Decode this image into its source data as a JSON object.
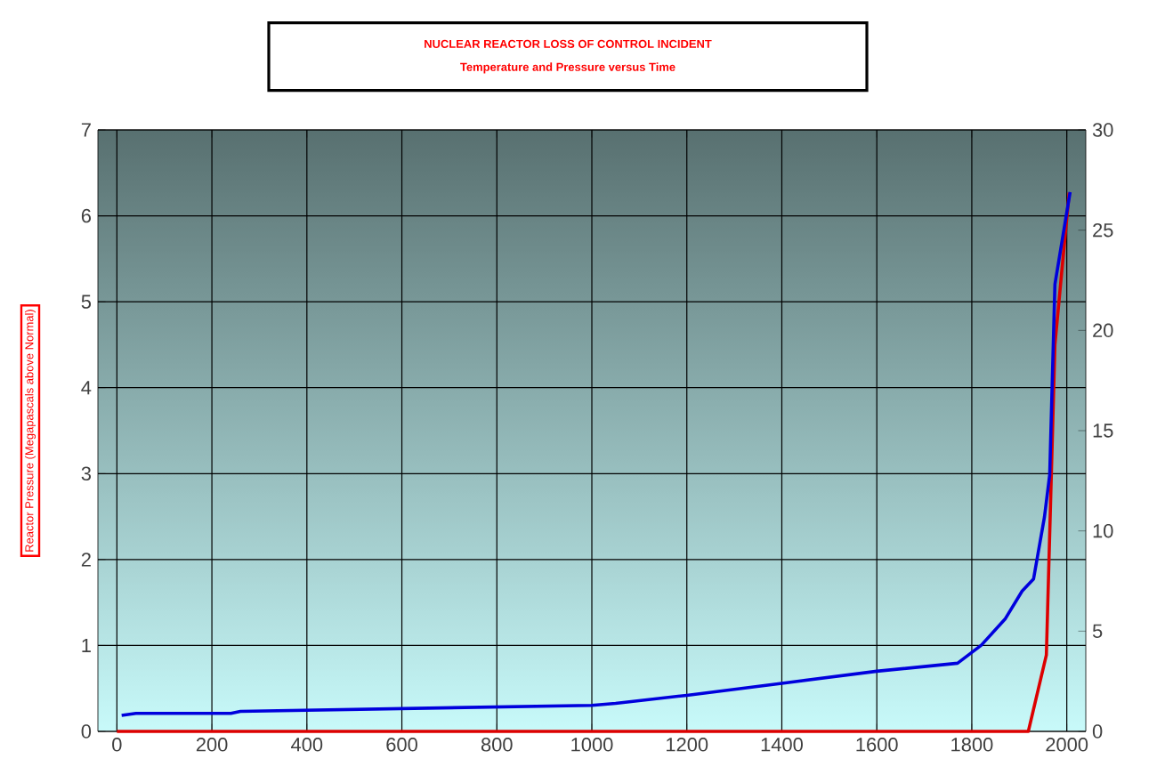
{
  "chart_data": {
    "type": "line",
    "title": "NUCLEAR REACTOR LOSS OF CONTROL INCIDENT",
    "subtitle": "Temperature and Pressure versus Time",
    "ylabel": "Reactor Pressure (Megapascals above Normal)",
    "xlim": [
      -40,
      2040
    ],
    "xticks": [
      0,
      200,
      400,
      600,
      800,
      1000,
      1200,
      1400,
      1600,
      1800,
      2000
    ],
    "ylim": [
      0,
      7
    ],
    "yticks": [
      0,
      1,
      2,
      3,
      4,
      5,
      6,
      7
    ],
    "y2lim": [
      0,
      30
    ],
    "y2ticks": [
      0,
      5,
      10,
      15,
      20,
      25,
      30
    ],
    "grid": true,
    "marker": "none",
    "line_style": "solid",
    "series": [
      {
        "color": "#0000dd",
        "axis": "y2",
        "x": [
          10,
          40,
          240,
          260,
          1000,
          1050,
          1200,
          1400,
          1600,
          1770,
          1820,
          1870,
          1906,
          1930,
          1953,
          1964,
          1975,
          2007
        ],
        "values": [
          0.8,
          0.9,
          0.9,
          1.0,
          1.3,
          1.4,
          1.8,
          2.4,
          3.0,
          3.4,
          4.3,
          5.6,
          7.0,
          7.6,
          10.7,
          12.8,
          22.3,
          26.9
        ]
      },
      {
        "color": "#dd0000",
        "x": [
          0,
          1919,
          1957,
          1975,
          2005
        ],
        "values": [
          0,
          0,
          0.89,
          4.5,
          6.27
        ]
      }
    ]
  }
}
